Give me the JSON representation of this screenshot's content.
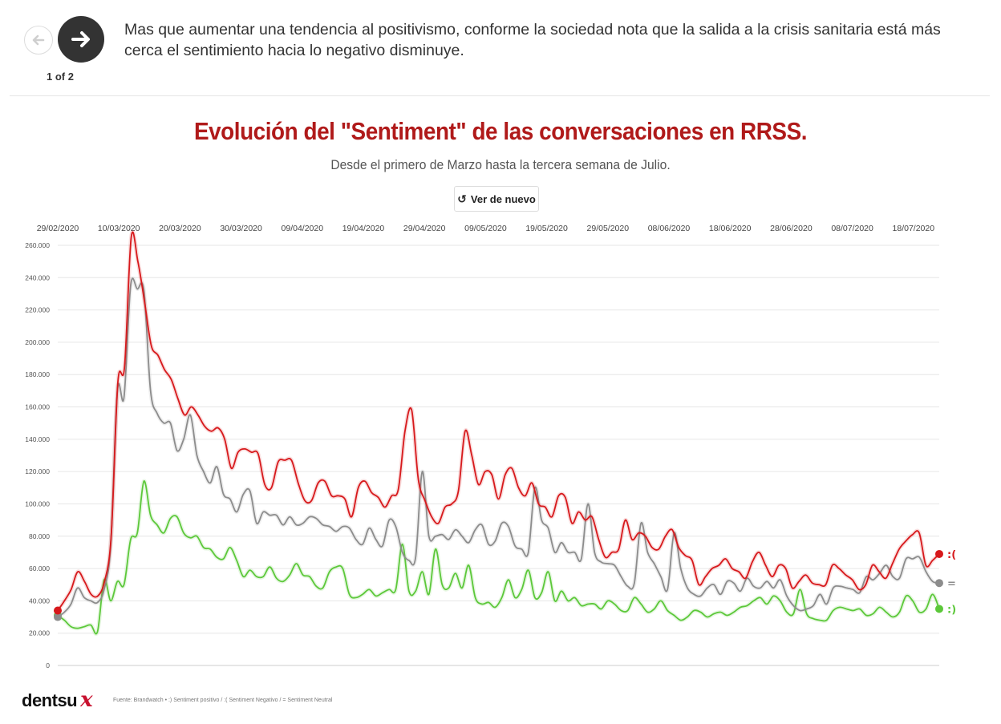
{
  "nav": {
    "counter": "1 of 2",
    "caption": "Mas que aumentar una tendencia al positivismo, conforme la sociedad nota que la salida a la crisis sanitaria está más cerca el sentimiento hacia lo negativo disminuye."
  },
  "header": {
    "title": "Evolución del \"Sentiment\" de las conversaciones en RRSS.",
    "subtitle": "Desde el primero de Marzo hasta la tercera semana de Julio."
  },
  "replay_label": "Ver de nuevo",
  "footer": {
    "brand": "dentsu",
    "brand_mark": "x",
    "source": "Fuente: Brandwatch • :) Sentiment positivo / :( Sentiment Negativo / = Sentiment Neutral"
  },
  "colors": {
    "negative": "#d7191c",
    "neutral": "#8c8c8c",
    "positive": "#5cc83a",
    "title": "#b01a1a"
  },
  "chart_data": {
    "type": "line",
    "title": "Evolución del \"Sentiment\" de las conversaciones en RRSS.",
    "subtitle": "Desde el primero de Marzo hasta la tercera semana de Julio.",
    "x_start": "29/02/2020",
    "x_end": "22/07/2020",
    "x_tick_labels": [
      "29/02/2020",
      "10/03/2020",
      "20/03/2020",
      "30/03/2020",
      "09/04/2020",
      "19/04/2020",
      "29/04/2020",
      "09/05/2020",
      "19/05/2020",
      "29/05/2020",
      "08/06/2020",
      "18/06/2020",
      "28/06/2020",
      "08/07/2020",
      "18/07/2020"
    ],
    "y_tick_labels": [
      "0",
      "20.000",
      "40.000",
      "60.000",
      "80.000",
      "100.000",
      "120.000",
      "140.000",
      "160.000",
      "180.000",
      "200.000",
      "220.000",
      "240.000",
      "260.000"
    ],
    "ylim": [
      0,
      260000
    ],
    "grid": true,
    "series": [
      {
        "name": "Sentiment Negativo",
        "label": ":(",
        "color": "#d7191c",
        "values": [
          34000,
          40000,
          47000,
          58000,
          52000,
          44000,
          43000,
          52000,
          80000,
          175000,
          185000,
          265000,
          250000,
          225000,
          198000,
          192000,
          183000,
          177000,
          165000,
          155000,
          160000,
          155000,
          148000,
          145000,
          147000,
          140000,
          122000,
          132000,
          134000,
          132000,
          131000,
          112000,
          110000,
          126000,
          127000,
          127000,
          113000,
          102000,
          102000,
          113000,
          114000,
          105000,
          105000,
          103000,
          92000,
          110000,
          114000,
          107000,
          104000,
          98000,
          105000,
          109000,
          145000,
          158000,
          115000,
          102000,
          92000,
          88000,
          98000,
          100000,
          108000,
          145000,
          130000,
          112000,
          120000,
          118000,
          103000,
          118000,
          122000,
          110000,
          105000,
          113000,
          100000,
          98000,
          92000,
          105000,
          104000,
          88000,
          95000,
          90000,
          92000,
          78000,
          67000,
          70000,
          72000,
          90000,
          78000,
          82000,
          80000,
          73000,
          72000,
          80000,
          84000,
          73000,
          68000,
          65000,
          50000,
          55000,
          60000,
          62000,
          66000,
          60000,
          58000,
          54000,
          64000,
          70000,
          62000,
          55000,
          62000,
          60000,
          48000,
          52000,
          56000,
          51000,
          50000,
          50000,
          62000,
          60000,
          56000,
          53000,
          47000,
          50000,
          62000,
          58000,
          54000,
          63000,
          72000,
          77000,
          81000,
          82000,
          62000,
          65000,
          69000
        ]
      },
      {
        "name": "Sentiment Neutral",
        "label": "=",
        "color": "#8c8c8c",
        "values": [
          30000,
          33000,
          38000,
          48000,
          42000,
          40000,
          39000,
          47000,
          75000,
          170000,
          166000,
          235000,
          233000,
          232000,
          170000,
          156000,
          150000,
          150000,
          133000,
          140000,
          155000,
          130000,
          120000,
          113000,
          123000,
          106000,
          103000,
          95000,
          106000,
          108000,
          88000,
          95000,
          93000,
          93000,
          87000,
          92000,
          87000,
          88000,
          92000,
          91000,
          87000,
          86000,
          83000,
          86000,
          85000,
          78000,
          75000,
          85000,
          78000,
          74000,
          90000,
          86000,
          70000,
          65000,
          67000,
          120000,
          80000,
          80000,
          81000,
          78000,
          84000,
          80000,
          76000,
          84000,
          87000,
          75000,
          77000,
          88000,
          86000,
          74000,
          72000,
          70000,
          110000,
          90000,
          85000,
          70000,
          76000,
          70000,
          70000,
          66000,
          100000,
          70000,
          64000,
          63000,
          62000,
          55000,
          49000,
          51000,
          88000,
          70000,
          63000,
          55000,
          47000,
          82000,
          60000,
          48000,
          44000,
          43000,
          48000,
          50000,
          44000,
          52000,
          51000,
          46000,
          54000,
          49000,
          48000,
          52000,
          48000,
          53000,
          43000,
          37000,
          34000,
          35000,
          37000,
          44000,
          38000,
          48000,
          49000,
          48000,
          47000,
          45000,
          55000,
          53000,
          57000,
          62000,
          55000,
          54000,
          66000,
          66000,
          67000,
          58000,
          52000,
          51000
        ]
      },
      {
        "name": "Sentiment Positivo",
        "label": ":)",
        "color": "#5cc83a",
        "values": [
          31000,
          28000,
          24000,
          23000,
          24000,
          25000,
          21000,
          53000,
          40000,
          52000,
          50000,
          78000,
          82000,
          114000,
          93000,
          87000,
          82000,
          91000,
          92000,
          82000,
          79000,
          80000,
          73000,
          72000,
          67000,
          66000,
          73000,
          65000,
          55000,
          59000,
          55000,
          55000,
          61000,
          54000,
          52000,
          56000,
          63000,
          56000,
          55000,
          49000,
          48000,
          58000,
          61000,
          60000,
          44000,
          42000,
          44000,
          47000,
          43000,
          45000,
          47000,
          47000,
          75000,
          46000,
          46000,
          58000,
          44000,
          72000,
          50000,
          48000,
          57000,
          48000,
          62000,
          42000,
          38000,
          39000,
          36000,
          42000,
          53000,
          42000,
          47000,
          59000,
          42000,
          45000,
          58000,
          40000,
          46000,
          40000,
          42000,
          37000,
          38000,
          38000,
          35000,
          40000,
          38000,
          34000,
          34000,
          42000,
          38000,
          33000,
          35000,
          40000,
          34000,
          31000,
          28000,
          30000,
          34000,
          33000,
          30000,
          32000,
          33000,
          31000,
          33000,
          36000,
          37000,
          40000,
          42000,
          38000,
          43000,
          40000,
          33000,
          32000,
          47000,
          32000,
          29000,
          28000,
          28000,
          34000,
          36000,
          35000,
          34000,
          35000,
          31000,
          32000,
          36000,
          33000,
          30000,
          33000,
          43000,
          40000,
          33000,
          35000,
          44000,
          35000
        ]
      }
    ]
  }
}
